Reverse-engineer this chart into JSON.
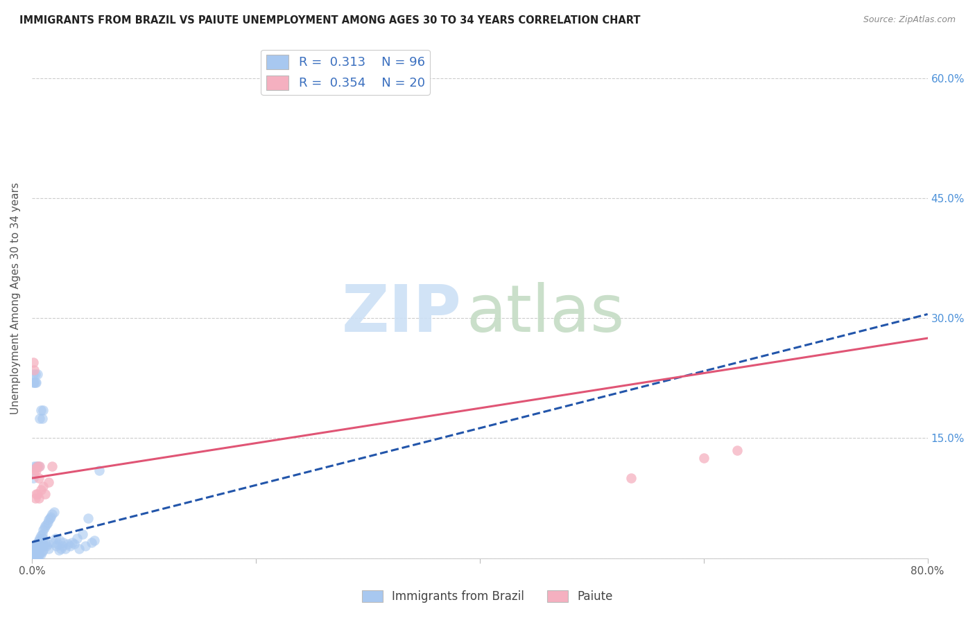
{
  "title": "IMMIGRANTS FROM BRAZIL VS PAIUTE UNEMPLOYMENT AMONG AGES 30 TO 34 YEARS CORRELATION CHART",
  "source": "Source: ZipAtlas.com",
  "ylabel": "Unemployment Among Ages 30 to 34 years",
  "xlim": [
    0.0,
    0.8
  ],
  "ylim": [
    0.0,
    0.65
  ],
  "xticks": [
    0.0,
    0.2,
    0.4,
    0.6,
    0.8
  ],
  "xticklabels": [
    "0.0%",
    "",
    "",
    "",
    "80.0%"
  ],
  "yticks": [
    0.0,
    0.15,
    0.3,
    0.45,
    0.6
  ],
  "yticklabels_right": [
    "",
    "15.0%",
    "30.0%",
    "45.0%",
    "60.0%"
  ],
  "brazil_R": 0.313,
  "brazil_N": 96,
  "paiute_R": 0.354,
  "paiute_N": 20,
  "brazil_color": "#a8c8f0",
  "paiute_color": "#f5b0c0",
  "brazil_line_color": "#2255aa",
  "paiute_line_color": "#e05575",
  "legend_label1": "Immigrants from Brazil",
  "legend_label2": "Paiute",
  "brazil_line_x": [
    0.0,
    0.8
  ],
  "brazil_line_y": [
    0.02,
    0.305
  ],
  "paiute_line_x": [
    0.0,
    0.8
  ],
  "paiute_line_y": [
    0.1,
    0.275
  ],
  "brazil_scatter_x": [
    0.001,
    0.001,
    0.001,
    0.001,
    0.002,
    0.002,
    0.002,
    0.002,
    0.002,
    0.002,
    0.003,
    0.003,
    0.003,
    0.003,
    0.003,
    0.003,
    0.004,
    0.004,
    0.004,
    0.004,
    0.004,
    0.005,
    0.005,
    0.005,
    0.005,
    0.005,
    0.006,
    0.006,
    0.006,
    0.006,
    0.007,
    0.007,
    0.007,
    0.007,
    0.008,
    0.008,
    0.008,
    0.008,
    0.009,
    0.009,
    0.009,
    0.01,
    0.01,
    0.01,
    0.011,
    0.011,
    0.012,
    0.012,
    0.013,
    0.013,
    0.014,
    0.014,
    0.015,
    0.015,
    0.016,
    0.017,
    0.018,
    0.019,
    0.02,
    0.021,
    0.022,
    0.023,
    0.024,
    0.025,
    0.026,
    0.027,
    0.028,
    0.03,
    0.032,
    0.034,
    0.036,
    0.038,
    0.04,
    0.042,
    0.045,
    0.048,
    0.05,
    0.053,
    0.056,
    0.06,
    0.001,
    0.001,
    0.001,
    0.002,
    0.002,
    0.003,
    0.003,
    0.004,
    0.004,
    0.005,
    0.005,
    0.006,
    0.007,
    0.008,
    0.009,
    0.01
  ],
  "brazil_scatter_y": [
    0.005,
    0.003,
    0.002,
    0.001,
    0.01,
    0.008,
    0.005,
    0.003,
    0.002,
    0.001,
    0.015,
    0.012,
    0.008,
    0.005,
    0.003,
    0.002,
    0.018,
    0.015,
    0.01,
    0.006,
    0.003,
    0.02,
    0.015,
    0.01,
    0.006,
    0.002,
    0.022,
    0.018,
    0.012,
    0.005,
    0.025,
    0.02,
    0.012,
    0.005,
    0.028,
    0.022,
    0.015,
    0.005,
    0.03,
    0.02,
    0.008,
    0.035,
    0.025,
    0.01,
    0.038,
    0.015,
    0.04,
    0.02,
    0.042,
    0.015,
    0.045,
    0.018,
    0.048,
    0.012,
    0.05,
    0.052,
    0.055,
    0.02,
    0.058,
    0.025,
    0.015,
    0.018,
    0.01,
    0.022,
    0.012,
    0.015,
    0.02,
    0.012,
    0.018,
    0.015,
    0.02,
    0.018,
    0.025,
    0.012,
    0.03,
    0.015,
    0.05,
    0.02,
    0.022,
    0.11,
    0.1,
    0.22,
    0.23,
    0.22,
    0.115,
    0.22,
    0.23,
    0.115,
    0.22,
    0.115,
    0.23,
    0.115,
    0.175,
    0.185,
    0.175,
    0.185
  ],
  "paiute_scatter_x": [
    0.001,
    0.002,
    0.002,
    0.003,
    0.003,
    0.004,
    0.004,
    0.005,
    0.005,
    0.006,
    0.006,
    0.007,
    0.008,
    0.01,
    0.012,
    0.015,
    0.018,
    0.535,
    0.6,
    0.63
  ],
  "paiute_scatter_y": [
    0.245,
    0.235,
    0.105,
    0.112,
    0.075,
    0.11,
    0.08,
    0.115,
    0.08,
    0.1,
    0.075,
    0.115,
    0.085,
    0.09,
    0.08,
    0.095,
    0.115,
    0.1,
    0.125,
    0.135
  ]
}
